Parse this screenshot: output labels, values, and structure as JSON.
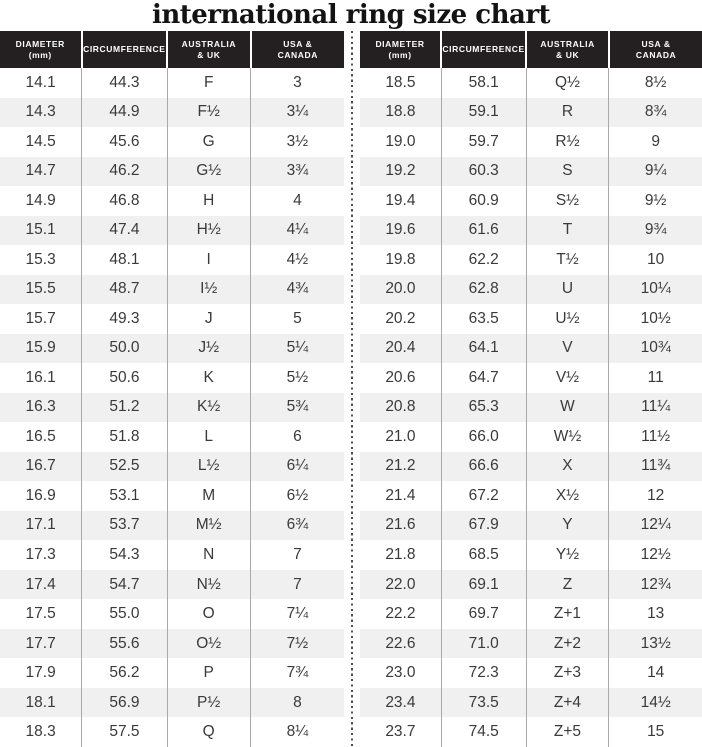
{
  "title": "international ring size chart",
  "header_columns": [
    {
      "line1": "DIAMETER",
      "line2": "(mm)"
    },
    {
      "line1": "CIRCUMFERENCE",
      "line2": ""
    },
    {
      "line1": "AUSTRALIA",
      "line2": "& UK"
    },
    {
      "line1": "USA &",
      "line2": "CANADA"
    }
  ],
  "chart_data": [
    {
      "type": "table",
      "title": "international ring size chart",
      "columns": [
        "DIAMETER (mm)",
        "CIRCUMFERENCE",
        "AUSTRALIA & UK",
        "USA & CANADA"
      ],
      "rows": [
        [
          "14.1",
          "44.3",
          "F",
          "3"
        ],
        [
          "14.3",
          "44.9",
          "F½",
          "3¼"
        ],
        [
          "14.5",
          "45.6",
          "G",
          "3½"
        ],
        [
          "14.7",
          "46.2",
          "G½",
          "3¾"
        ],
        [
          "14.9",
          "46.8",
          "H",
          "4"
        ],
        [
          "15.1",
          "47.4",
          "H½",
          "4¼"
        ],
        [
          "15.3",
          "48.1",
          "I",
          "4½"
        ],
        [
          "15.5",
          "48.7",
          "I½",
          "4¾"
        ],
        [
          "15.7",
          "49.3",
          "J",
          "5"
        ],
        [
          "15.9",
          "50.0",
          "J½",
          "5¼"
        ],
        [
          "16.1",
          "50.6",
          "K",
          "5½"
        ],
        [
          "16.3",
          "51.2",
          "K½",
          "5¾"
        ],
        [
          "16.5",
          "51.8",
          "L",
          "6"
        ],
        [
          "16.7",
          "52.5",
          "L½",
          "6¼"
        ],
        [
          "16.9",
          "53.1",
          "M",
          "6½"
        ],
        [
          "17.1",
          "53.7",
          "M½",
          "6¾"
        ],
        [
          "17.3",
          "54.3",
          "N",
          "7"
        ],
        [
          "17.4",
          "54.7",
          "N½",
          "7"
        ],
        [
          "17.5",
          "55.0",
          "O",
          "7¼"
        ],
        [
          "17.7",
          "55.6",
          "O½",
          "7½"
        ],
        [
          "17.9",
          "56.2",
          "P",
          "7¾"
        ],
        [
          "18.1",
          "56.9",
          "P½",
          "8"
        ],
        [
          "18.3",
          "57.5",
          "Q",
          "8¼"
        ]
      ]
    },
    {
      "type": "table",
      "title": "international ring size chart",
      "columns": [
        "DIAMETER (mm)",
        "CIRCUMFERENCE",
        "AUSTRALIA & UK",
        "USA & CANADA"
      ],
      "rows": [
        [
          "18.5",
          "58.1",
          "Q½",
          "8½"
        ],
        [
          "18.8",
          "59.1",
          "R",
          "8¾"
        ],
        [
          "19.0",
          "59.7",
          "R½",
          "9"
        ],
        [
          "19.2",
          "60.3",
          "S",
          "9¼"
        ],
        [
          "19.4",
          "60.9",
          "S½",
          "9½"
        ],
        [
          "19.6",
          "61.6",
          "T",
          "9¾"
        ],
        [
          "19.8",
          "62.2",
          "T½",
          "10"
        ],
        [
          "20.0",
          "62.8",
          "U",
          "10¼"
        ],
        [
          "20.2",
          "63.5",
          "U½",
          "10½"
        ],
        [
          "20.4",
          "64.1",
          "V",
          "10¾"
        ],
        [
          "20.6",
          "64.7",
          "V½",
          "11"
        ],
        [
          "20.8",
          "65.3",
          "W",
          "11¼"
        ],
        [
          "21.0",
          "66.0",
          "W½",
          "11½"
        ],
        [
          "21.2",
          "66.6",
          "X",
          "11¾"
        ],
        [
          "21.4",
          "67.2",
          "X½",
          "12"
        ],
        [
          "21.6",
          "67.9",
          "Y",
          "12¼"
        ],
        [
          "21.8",
          "68.5",
          "Y½",
          "12½"
        ],
        [
          "22.0",
          "69.1",
          "Z",
          "12¾"
        ],
        [
          "22.2",
          "69.7",
          "Z+1",
          "13"
        ],
        [
          "22.6",
          "71.0",
          "Z+2",
          "13½"
        ],
        [
          "23.0",
          "72.3",
          "Z+3",
          "14"
        ],
        [
          "23.4",
          "73.5",
          "Z+4",
          "14½"
        ],
        [
          "23.7",
          "74.5",
          "Z+5",
          "15"
        ]
      ]
    }
  ],
  "colors": {
    "header_bg": "#242021",
    "header_text": "#ffffff",
    "body_text": "#3a3a3a",
    "stripe_bg": "#f0f0f1",
    "column_border": "#a9a9a9",
    "divider_dot": "#4f4f4f"
  }
}
